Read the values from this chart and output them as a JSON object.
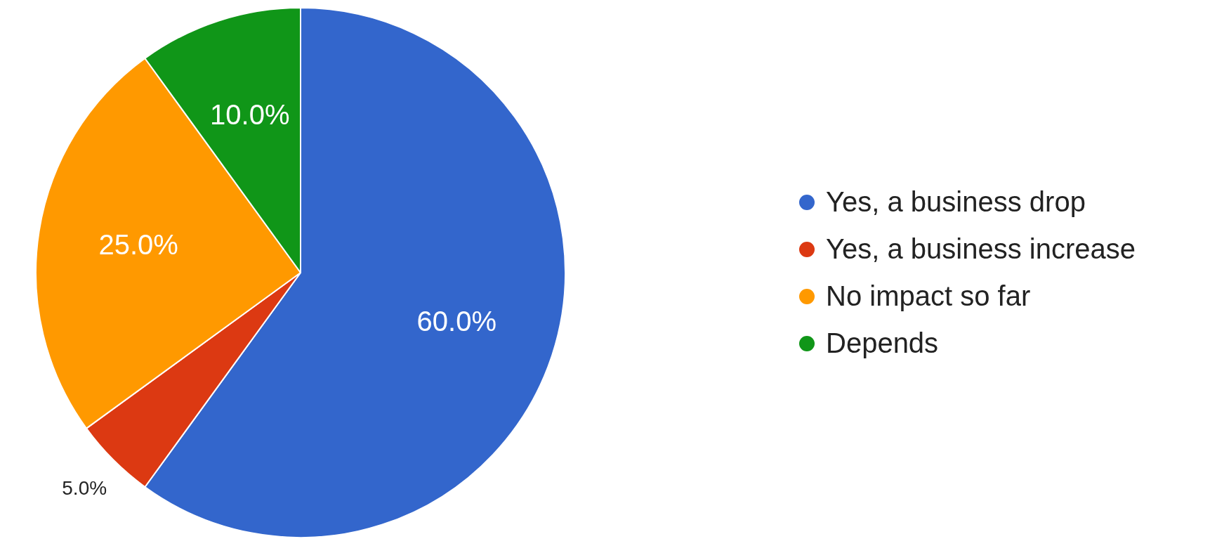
{
  "chart_data": {
    "type": "pie",
    "categories": [
      "Yes, a business drop",
      "Yes, a business increase",
      "No impact so far",
      "Depends"
    ],
    "values": [
      60,
      5,
      25,
      10
    ],
    "colors": [
      "#3366cc",
      "#dc3912",
      "#ff9900",
      "#109618"
    ],
    "value_labels": [
      "60.0%",
      "5.0%",
      "25.0%",
      "10.0%"
    ],
    "legend": "right"
  }
}
